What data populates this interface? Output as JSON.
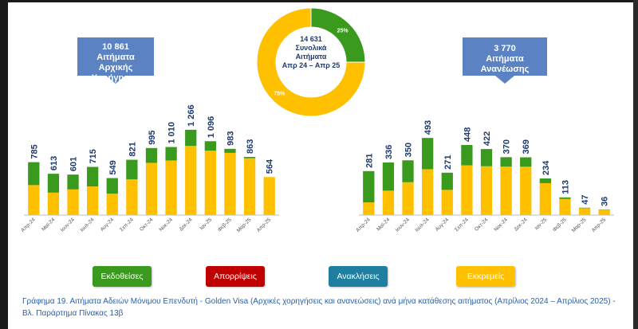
{
  "callout_left": {
    "value": "10 861",
    "line1": "Αιτήματα",
    "line2": "Αρχικής Χορήγησης"
  },
  "callout_right": {
    "value": "3 770",
    "line1": "Αιτήματα",
    "line2": "Ανανέωσης"
  },
  "donut": {
    "center_value": "14 631",
    "center_line1": "Συνολικά",
    "center_line2": "Αιτήματα",
    "center_line3": "Απρ 24 – Απρ 25",
    "slices": [
      {
        "label": "25%",
        "value": 25,
        "color": "#3a9a1e"
      },
      {
        "label": "75%",
        "value": 75,
        "color": "#ffc000"
      }
    ]
  },
  "legend": [
    {
      "label": "Εκδοθείσες",
      "color": "#3a9a1e"
    },
    {
      "label": "Απορρίψεις",
      "color": "#c00000"
    },
    {
      "label": "Ανακλήσεις",
      "color": "#1f7fa0"
    },
    {
      "label": "Εκκρεμείς",
      "color": "#ffc000"
    }
  ],
  "chart_data": [
    {
      "type": "bar",
      "stacked": true,
      "categories": [
        "Απρ-24",
        "Μαϊ-24",
        "Ιουν-24",
        "Ιουλ-24",
        "Αυγ-24",
        "Σεπ-24",
        "Οκτ-24",
        "Νοε-24",
        "Δεκ-24",
        "Ιαν-25",
        "Φεβ-25",
        "Μαρ-25",
        "Απρ-25"
      ],
      "totals": [
        785,
        613,
        601,
        715,
        549,
        821,
        995,
        1010,
        1266,
        1096,
        983,
        863,
        564
      ],
      "total_labels": [
        "785",
        "613",
        "601",
        "715",
        "549",
        "821",
        "995",
        "1 010",
        "1 266",
        "1 096",
        "983",
        "863",
        "564"
      ],
      "series": [
        {
          "name": "Εκδοθείσες",
          "color": "#3a9a1e",
          "values": [
            340,
            280,
            220,
            290,
            230,
            290,
            220,
            200,
            240,
            140,
            60,
            20,
            0
          ]
        },
        {
          "name": "Εκκρεμείς",
          "color": "#ffc000",
          "values": [
            445,
            333,
            381,
            425,
            319,
            531,
            775,
            810,
            1026,
            956,
            923,
            843,
            564
          ]
        }
      ],
      "ylim": [
        0,
        1300
      ]
    },
    {
      "type": "bar",
      "stacked": true,
      "categories": [
        "Απρ-24",
        "Μαϊ-24",
        "Ιουν-24",
        "Ιουλ-24",
        "Αυγ-24",
        "Σεπ-24",
        "Οκτ-24",
        "Νοε-24",
        "Δεκ-24",
        "Ιαν-25",
        "Φεβ-25",
        "Μαρ-25",
        "Απρ-25"
      ],
      "totals": [
        281,
        336,
        350,
        493,
        271,
        448,
        422,
        370,
        369,
        234,
        113,
        47,
        36
      ],
      "total_labels": [
        "281",
        "336",
        "350",
        "493",
        "271",
        "448",
        "422",
        "370",
        "369",
        "234",
        "113",
        "47",
        "36"
      ],
      "series": [
        {
          "name": "Εκδοθείσες",
          "color": "#3a9a1e",
          "values": [
            200,
            180,
            140,
            200,
            110,
            130,
            110,
            60,
            60,
            30,
            10,
            3,
            2
          ]
        },
        {
          "name": "Εκκρεμείς",
          "color": "#ffc000",
          "values": [
            81,
            156,
            210,
            293,
            161,
            318,
            312,
            310,
            309,
            204,
            103,
            44,
            34
          ]
        }
      ],
      "ylim": [
        0,
        560
      ]
    }
  ],
  "caption": "Γράφημα 19. Αιτήματα Αδειών Μόνιμου Επενδυτή - Golden Visa (Αρχικές χορηγήσεις και ανανεώσεις) ανά μήνα κατάθεσης αιτήματος (Απρίλιος 2024 – Απρίλιος 2025) - Βλ. Παράρτημα  Πίνακας 13β"
}
